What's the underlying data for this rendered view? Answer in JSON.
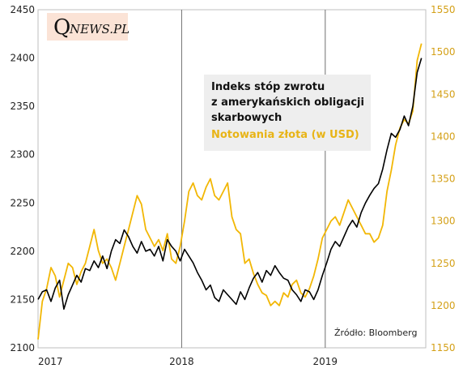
{
  "logo": {
    "initial": "Q",
    "rest": "NEWS.PL"
  },
  "chart_data": {
    "type": "line",
    "title": "",
    "xlabel": "",
    "ylabel": "",
    "x_ticks": [
      "2017",
      "2018",
      "2019"
    ],
    "x_range": [
      2017.0,
      2019.7
    ],
    "y_left": {
      "range": [
        2100,
        2450
      ],
      "ticks": [
        "2100",
        "2150",
        "2200",
        "2250",
        "2300",
        "2350",
        "2400",
        "2450"
      ]
    },
    "y_right": {
      "range": [
        1150,
        1550
      ],
      "ticks": [
        "1150",
        "1200",
        "1250",
        "1300",
        "1350",
        "1400",
        "1450",
        "1500",
        "1550"
      ]
    },
    "grid": false,
    "legend": {
      "placement": "top-right",
      "lines": [
        "Indeks stóp zwrotu",
        "z amerykańskich obligacji",
        "skarbowych",
        "Notowania złota (w USD)"
      ]
    },
    "source": "Źródło: Bloomberg",
    "series": [
      {
        "name": "Indeks stóp zwrotu z amerykańskich obligacji skarbowych",
        "axis": "left",
        "color": "#000000",
        "x": [
          2017.0,
          2017.03,
          2017.06,
          2017.09,
          2017.12,
          2017.15,
          2017.18,
          2017.21,
          2017.24,
          2017.27,
          2017.3,
          2017.33,
          2017.36,
          2017.39,
          2017.42,
          2017.45,
          2017.48,
          2017.51,
          2017.54,
          2017.57,
          2017.6,
          2017.63,
          2017.66,
          2017.69,
          2017.72,
          2017.75,
          2017.78,
          2017.81,
          2017.84,
          2017.87,
          2017.9,
          2017.93,
          2017.96,
          2017.99,
          2018.02,
          2018.05,
          2018.08,
          2018.11,
          2018.14,
          2018.17,
          2018.2,
          2018.23,
          2018.26,
          2018.29,
          2018.32,
          2018.35,
          2018.38,
          2018.41,
          2018.44,
          2018.47,
          2018.5,
          2018.53,
          2018.56,
          2018.59,
          2018.62,
          2018.65,
          2018.68,
          2018.71,
          2018.74,
          2018.77,
          2018.8,
          2018.83,
          2018.86,
          2018.89,
          2018.92,
          2018.95,
          2018.98,
          2019.01,
          2019.04,
          2019.07,
          2019.1,
          2019.13,
          2019.16,
          2019.19,
          2019.22,
          2019.25,
          2019.28,
          2019.31,
          2019.34,
          2019.37,
          2019.4,
          2019.43,
          2019.46,
          2019.49,
          2019.52,
          2019.55,
          2019.58,
          2019.61,
          2019.64,
          2019.67
        ],
        "values": [
          2150,
          2158,
          2160,
          2148,
          2162,
          2170,
          2140,
          2155,
          2165,
          2175,
          2168,
          2182,
          2180,
          2190,
          2183,
          2195,
          2182,
          2200,
          2212,
          2208,
          2222,
          2215,
          2205,
          2198,
          2210,
          2200,
          2202,
          2195,
          2205,
          2190,
          2212,
          2205,
          2200,
          2190,
          2202,
          2195,
          2188,
          2178,
          2170,
          2160,
          2165,
          2152,
          2148,
          2160,
          2155,
          2150,
          2145,
          2158,
          2150,
          2162,
          2172,
          2178,
          2168,
          2180,
          2175,
          2185,
          2178,
          2172,
          2170,
          2160,
          2155,
          2148,
          2160,
          2158,
          2150,
          2160,
          2175,
          2188,
          2202,
          2210,
          2205,
          2215,
          2225,
          2232,
          2225,
          2240,
          2250,
          2258,
          2265,
          2270,
          2285,
          2305,
          2322,
          2318,
          2326,
          2340,
          2330,
          2350,
          2385,
          2400
        ]
      },
      {
        "name": "Notowania złota (w USD)",
        "axis": "right",
        "color": "#f2b705",
        "x": [
          2017.0,
          2017.03,
          2017.06,
          2017.09,
          2017.12,
          2017.15,
          2017.18,
          2017.21,
          2017.24,
          2017.27,
          2017.3,
          2017.33,
          2017.36,
          2017.39,
          2017.42,
          2017.45,
          2017.48,
          2017.51,
          2017.54,
          2017.57,
          2017.6,
          2017.63,
          2017.66,
          2017.69,
          2017.72,
          2017.75,
          2017.78,
          2017.81,
          2017.84,
          2017.87,
          2017.9,
          2017.93,
          2017.96,
          2017.99,
          2018.02,
          2018.05,
          2018.08,
          2018.11,
          2018.14,
          2018.17,
          2018.2,
          2018.23,
          2018.26,
          2018.29,
          2018.32,
          2018.35,
          2018.38,
          2018.41,
          2018.44,
          2018.47,
          2018.5,
          2018.53,
          2018.56,
          2018.59,
          2018.62,
          2018.65,
          2018.68,
          2018.71,
          2018.74,
          2018.77,
          2018.8,
          2018.83,
          2018.86,
          2018.89,
          2018.92,
          2018.95,
          2018.98,
          2019.01,
          2019.04,
          2019.07,
          2019.1,
          2019.13,
          2019.16,
          2019.19,
          2019.22,
          2019.25,
          2019.28,
          2019.31,
          2019.34,
          2019.37,
          2019.4,
          2019.43,
          2019.46,
          2019.49,
          2019.52,
          2019.55,
          2019.58,
          2019.61,
          2019.64,
          2019.67
        ],
        "values": [
          1160,
          1205,
          1220,
          1245,
          1235,
          1210,
          1230,
          1250,
          1245,
          1225,
          1240,
          1250,
          1270,
          1290,
          1265,
          1250,
          1255,
          1245,
          1230,
          1250,
          1270,
          1290,
          1310,
          1330,
          1320,
          1290,
          1280,
          1270,
          1278,
          1265,
          1285,
          1255,
          1250,
          1270,
          1300,
          1335,
          1345,
          1330,
          1325,
          1340,
          1350,
          1330,
          1325,
          1335,
          1345,
          1305,
          1290,
          1285,
          1250,
          1255,
          1238,
          1225,
          1215,
          1212,
          1200,
          1205,
          1200,
          1215,
          1210,
          1225,
          1230,
          1215,
          1210,
          1220,
          1235,
          1255,
          1280,
          1290,
          1300,
          1305,
          1295,
          1310,
          1325,
          1315,
          1305,
          1295,
          1285,
          1285,
          1275,
          1280,
          1295,
          1335,
          1360,
          1390,
          1410,
          1420,
          1415,
          1430,
          1490,
          1510
        ]
      }
    ]
  }
}
